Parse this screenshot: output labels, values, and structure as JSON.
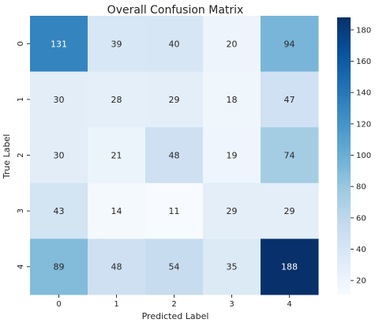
{
  "chart_data": {
    "type": "heatmap",
    "title": "Overall Confusion Matrix",
    "xlabel": "Predicted Label",
    "ylabel": "True Label",
    "x_categories": [
      "0",
      "1",
      "2",
      "3",
      "4"
    ],
    "y_categories": [
      "0",
      "1",
      "2",
      "3",
      "4"
    ],
    "values": [
      [
        131,
        39,
        40,
        20,
        94
      ],
      [
        30,
        28,
        29,
        18,
        47
      ],
      [
        30,
        21,
        48,
        19,
        74
      ],
      [
        43,
        14,
        11,
        29,
        29
      ],
      [
        89,
        48,
        54,
        35,
        188
      ]
    ],
    "colormap": "Blues",
    "colorbar": {
      "vmin": 11,
      "vmax": 188,
      "ticks": [
        "20",
        "40",
        "60",
        "80",
        "100",
        "120",
        "140",
        "160",
        "180"
      ]
    }
  }
}
